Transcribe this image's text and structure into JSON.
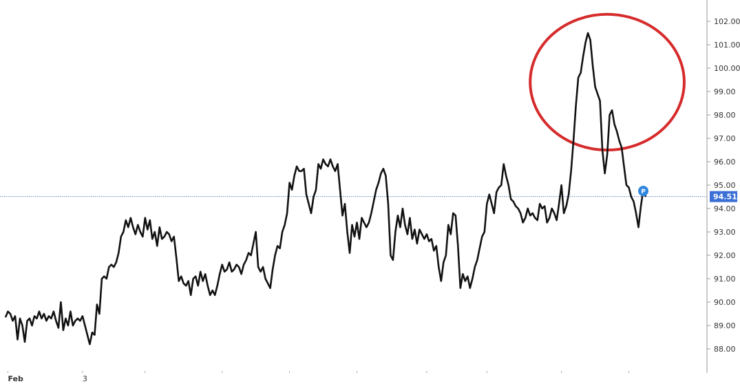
{
  "chart_data": {
    "type": "line",
    "title": "",
    "xlabel": "",
    "ylabel": "",
    "ylim": [
      87.3,
      102.4
    ],
    "xlim": [
      0,
      270
    ],
    "y_ticks": [
      "88.00",
      "89.00",
      "90.00",
      "91.00",
      "92.00",
      "93.00",
      "94.00",
      "95.00",
      "96.00",
      "97.00",
      "98.00",
      "99.00",
      "100.00",
      "101.00",
      "102.00"
    ],
    "x_tick_labels": [
      {
        "x": 1,
        "label": "Feb",
        "bold": true
      },
      {
        "x": 32,
        "label": "3",
        "bold": false
      }
    ],
    "x_tick_marks": [
      1,
      32,
      58,
      90,
      118,
      146,
      175,
      200,
      231,
      259
    ],
    "current_price": {
      "label": "94.51",
      "value": 94.51
    },
    "marker": {
      "label": "P",
      "x": 265,
      "value": 94.75
    },
    "colors": {
      "line": "#111111",
      "price_label_bg": "#3b6fd6",
      "price_line": "#5b7fc4",
      "circle": "#d62b2b",
      "marker": "#2e86de"
    },
    "circle_annotation": {
      "x_range": [
        218,
        282
      ],
      "y_range": [
        96.5,
        102.3
      ]
    },
    "series": [
      {
        "values": [
          89.35,
          89.6,
          89.5,
          89.2,
          89.4,
          88.4,
          89.3,
          89.0,
          88.3,
          89.2,
          89.3,
          89.0,
          89.4,
          89.3,
          89.6,
          89.3,
          89.5,
          89.2,
          89.4,
          89.3,
          89.6,
          89.2,
          88.9,
          90.0,
          88.8,
          89.3,
          89.0,
          89.6,
          89.0,
          89.2,
          89.3,
          89.2,
          89.4,
          89.0,
          88.6,
          88.2,
          88.7,
          88.6,
          89.9,
          89.5,
          91.0,
          91.1,
          91.0,
          91.5,
          91.6,
          91.5,
          91.7,
          92.1,
          92.8,
          93.0,
          93.5,
          93.2,
          93.6,
          93.2,
          92.9,
          93.3,
          93.0,
          92.8,
          93.6,
          93.1,
          93.5,
          92.7,
          93.0,
          92.4,
          93.2,
          92.7,
          92.8,
          93.0,
          92.9,
          92.6,
          92.8,
          91.9,
          90.9,
          91.1,
          90.8,
          90.7,
          90.9,
          90.3,
          91.0,
          91.1,
          90.7,
          91.3,
          90.9,
          91.2,
          90.7,
          90.3,
          90.5,
          90.3,
          90.7,
          91.2,
          91.6,
          91.3,
          91.4,
          91.7,
          91.3,
          91.4,
          91.6,
          91.5,
          91.2,
          91.6,
          91.8,
          92.1,
          92.0,
          92.5,
          93.0,
          91.5,
          91.3,
          91.5,
          91.0,
          90.8,
          90.6,
          91.4,
          92.0,
          92.4,
          92.3,
          93.0,
          93.3,
          93.8,
          95.1,
          94.8,
          95.4,
          95.8,
          95.6,
          95.6,
          95.7,
          94.6,
          94.2,
          93.8,
          94.5,
          94.8,
          95.9,
          95.7,
          96.1,
          95.9,
          95.8,
          96.1,
          95.8,
          95.6,
          95.9,
          94.8,
          93.7,
          94.2,
          93.0,
          92.1,
          93.3,
          92.8,
          93.4,
          92.7,
          93.6,
          93.4,
          93.2,
          93.4,
          93.8,
          94.3,
          94.8,
          95.1,
          95.5,
          95.7,
          95.4,
          94.2,
          92.0,
          91.8,
          93.0,
          93.7,
          93.2,
          94.0,
          93.3,
          92.9,
          93.6,
          92.7,
          93.1,
          92.5,
          93.1,
          92.9,
          92.7,
          92.9,
          92.6,
          92.7,
          92.2,
          92.4,
          91.5,
          90.9,
          91.7,
          92.0,
          93.3,
          92.9,
          93.8,
          93.7,
          92.4,
          90.6,
          91.2,
          90.9,
          91.1,
          90.6,
          91.0,
          91.5,
          91.8,
          92.3,
          92.8,
          93.0,
          94.2,
          94.6,
          94.2,
          93.8,
          94.7,
          94.9,
          95.0,
          95.9,
          95.4,
          95.0,
          94.4,
          94.3,
          94.1,
          94.0,
          93.8,
          93.4,
          93.6,
          94.0,
          93.7,
          93.8,
          93.6,
          93.5,
          94.2,
          94.0,
          94.1,
          93.4,
          93.6,
          94.0,
          93.8,
          93.5,
          94.2,
          95.0,
          93.8,
          94.1,
          94.6,
          95.6,
          96.9,
          98.4,
          99.6,
          99.8,
          100.5,
          101.1,
          101.5,
          101.2,
          100.1,
          99.2,
          98.9,
          98.6,
          96.5,
          95.5,
          96.3,
          98.0,
          98.2,
          97.6,
          97.3,
          96.9,
          96.6,
          95.8,
          95.0,
          94.9,
          94.5,
          94.3,
          93.8,
          93.2,
          94.1,
          94.8,
          94.5
        ]
      }
    ]
  }
}
